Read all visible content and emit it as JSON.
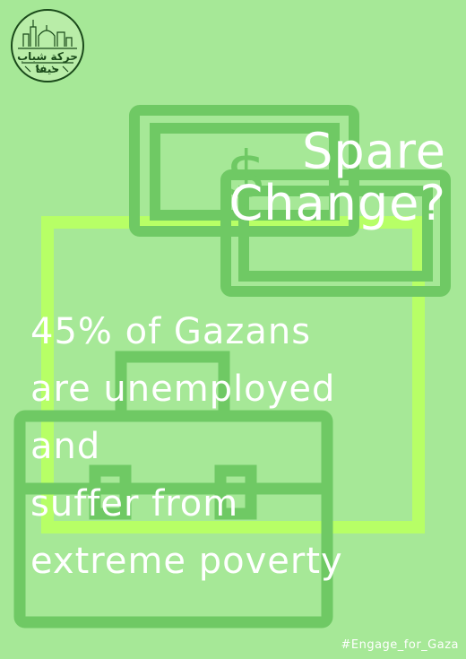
{
  "logo": {
    "text": "حركة شباب حيفا"
  },
  "headline": {
    "line1": "Spare",
    "line2": "Change?"
  },
  "body": {
    "lines": [
      "45% of Gazans",
      "are unemployed",
      "and",
      "suffer from",
      "extreme poverty"
    ]
  },
  "hashtag": "#Engage_for_Gaza",
  "icons": [
    "money-bills-icon",
    "briefcase-icon",
    "city-skyline-icon"
  ],
  "colors": {
    "background": "#a6e897",
    "shape": "#6fc964",
    "highlight": "#b7ff66",
    "text": "#ffffff"
  }
}
